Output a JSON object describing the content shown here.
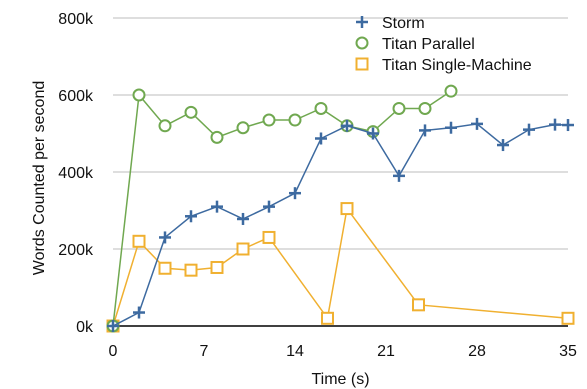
{
  "chart_data": {
    "type": "line",
    "title": "",
    "xlabel": "Time (s)",
    "ylabel": "Words Counted per second",
    "xlim": [
      0,
      35
    ],
    "ylim": [
      0,
      800000
    ],
    "x_ticks": [
      0,
      7,
      14,
      21,
      28,
      35
    ],
    "x_tick_labels": [
      "0",
      "7",
      "14",
      "21",
      "28",
      "35"
    ],
    "y_ticks": [
      0,
      200000,
      400000,
      600000,
      800000
    ],
    "y_tick_labels": [
      "0k",
      "200k",
      "400k",
      "600k",
      "800k"
    ],
    "grid": "horizontal",
    "legend_position": "top-right",
    "series": [
      {
        "name": "Storm",
        "color": "#3d6aa0",
        "marker": "plus",
        "x": [
          0,
          2,
          4,
          6,
          8,
          10,
          12,
          14,
          16,
          18,
          20,
          22,
          24,
          26,
          28,
          30,
          32,
          34,
          35
        ],
        "y": [
          0,
          35000,
          230000,
          285000,
          310000,
          278000,
          310000,
          345000,
          487000,
          520000,
          500000,
          390000,
          508000,
          515000,
          525000,
          470000,
          510000,
          523000,
          522000
        ]
      },
      {
        "name": "Titan Parallel",
        "color": "#70a850",
        "marker": "circle",
        "x": [
          0,
          2,
          4,
          6,
          8,
          10,
          12,
          14,
          16,
          18,
          20,
          22,
          24,
          26
        ],
        "y": [
          0,
          600000,
          520000,
          555000,
          490000,
          515000,
          535000,
          535000,
          565000,
          520000,
          505000,
          565000,
          565000,
          610000
        ]
      },
      {
        "name": "Titan Single-Machine",
        "color": "#f0b030",
        "marker": "square",
        "x": [
          0,
          2,
          4,
          6,
          8,
          10,
          12,
          16.5,
          18,
          23.5,
          35
        ],
        "y": [
          0,
          220000,
          150000,
          145000,
          152000,
          200000,
          230000,
          20000,
          305000,
          55000,
          20000
        ]
      }
    ]
  }
}
